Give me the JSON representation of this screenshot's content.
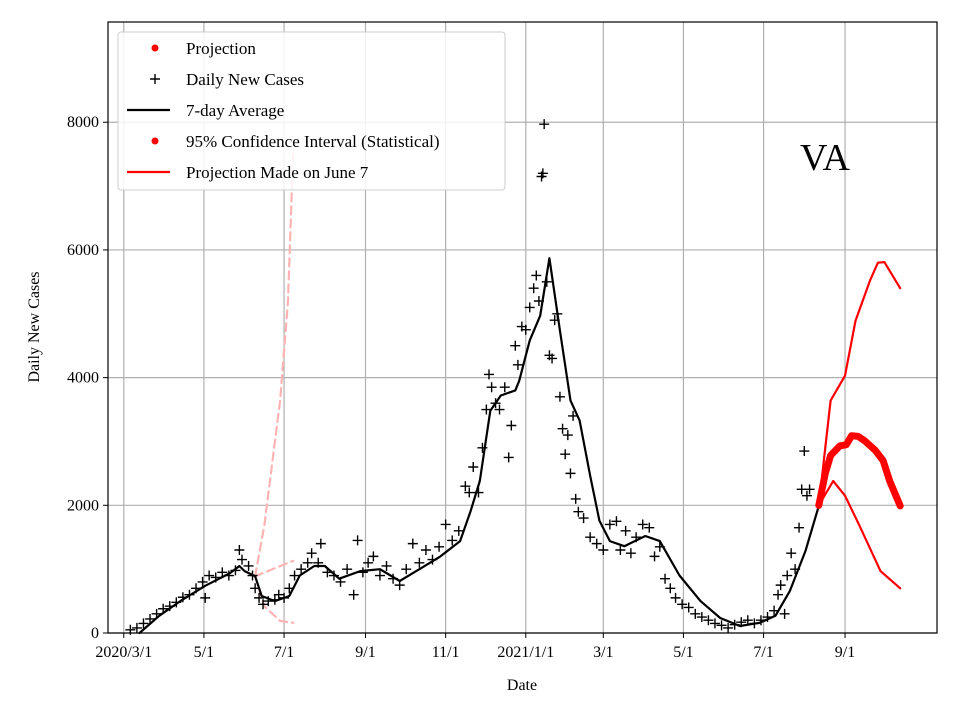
{
  "chart_data": {
    "type": "line",
    "title": "",
    "annotation": "VA",
    "xlabel": "Date",
    "ylabel": "Daily New Cases",
    "x_unit": "days since 2020-03-01",
    "xlim": [
      -12,
      619
    ],
    "ylim": [
      0,
      9570
    ],
    "grid": true,
    "legend_position": "top-left",
    "x_ticks": [
      {
        "day": 0,
        "label": "2020/3/1"
      },
      {
        "day": 61,
        "label": "5/1"
      },
      {
        "day": 122,
        "label": "7/1"
      },
      {
        "day": 184,
        "label": "9/1"
      },
      {
        "day": 245,
        "label": "11/1"
      },
      {
        "day": 306,
        "label": "2021/1/1"
      },
      {
        "day": 365,
        "label": "3/1"
      },
      {
        "day": 426,
        "label": "5/1"
      },
      {
        "day": 487,
        "label": "7/1"
      },
      {
        "day": 549,
        "label": "9/1"
      }
    ],
    "y_ticks": [
      {
        "value": 0,
        "label": "0"
      },
      {
        "value": 2000,
        "label": "2000"
      },
      {
        "value": 4000,
        "label": "4000"
      },
      {
        "value": 6000,
        "label": "6000"
      },
      {
        "value": 8000,
        "label": "8000"
      }
    ],
    "legend": [
      {
        "label": "Projection",
        "marker": "dot",
        "color": "#ff0000"
      },
      {
        "label": "Daily New Cases",
        "marker": "plus",
        "color": "#000000"
      },
      {
        "label": "7-day Average",
        "marker": "line",
        "color": "#000000"
      },
      {
        "label": "95% Confidence Interval (Statistical)",
        "marker": "dot",
        "color": "#ff0000"
      },
      {
        "label": "Projection Made on June 7",
        "marker": "line",
        "color": "#ff0000"
      }
    ],
    "series": [
      {
        "name": "Daily New Cases",
        "style": "plus",
        "color": "#000000",
        "points": [
          [
            5,
            50
          ],
          [
            10,
            80
          ],
          [
            15,
            150
          ],
          [
            20,
            220
          ],
          [
            25,
            300
          ],
          [
            30,
            380
          ],
          [
            35,
            420
          ],
          [
            40,
            480
          ],
          [
            45,
            560
          ],
          [
            50,
            600
          ],
          [
            55,
            700
          ],
          [
            60,
            800
          ],
          [
            62,
            550
          ],
          [
            65,
            900
          ],
          [
            70,
            870
          ],
          [
            75,
            950
          ],
          [
            80,
            900
          ],
          [
            85,
            980
          ],
          [
            88,
            1300
          ],
          [
            90,
            1150
          ],
          [
            95,
            1050
          ],
          [
            98,
            900
          ],
          [
            100,
            700
          ],
          [
            103,
            550
          ],
          [
            106,
            450
          ],
          [
            110,
            500
          ],
          [
            115,
            520
          ],
          [
            118,
            600
          ],
          [
            122,
            550
          ],
          [
            126,
            700
          ],
          [
            130,
            900
          ],
          [
            135,
            1000
          ],
          [
            140,
            1100
          ],
          [
            143,
            1250
          ],
          [
            148,
            1100
          ],
          [
            150,
            1400
          ],
          [
            155,
            950
          ],
          [
            160,
            900
          ],
          [
            165,
            800
          ],
          [
            170,
            1000
          ],
          [
            175,
            600
          ],
          [
            178,
            1450
          ],
          [
            182,
            950
          ],
          [
            186,
            1100
          ],
          [
            190,
            1200
          ],
          [
            195,
            900
          ],
          [
            200,
            1050
          ],
          [
            205,
            850
          ],
          [
            210,
            750
          ],
          [
            215,
            1000
          ],
          [
            220,
            1400
          ],
          [
            225,
            1100
          ],
          [
            230,
            1300
          ],
          [
            235,
            1150
          ],
          [
            240,
            1350
          ],
          [
            245,
            1700
          ],
          [
            250,
            1450
          ],
          [
            255,
            1600
          ],
          [
            260,
            2300
          ],
          [
            263,
            2200
          ],
          [
            266,
            2600
          ],
          [
            270,
            2200
          ],
          [
            273,
            2900
          ],
          [
            276,
            3500
          ],
          [
            278,
            4050
          ],
          [
            280,
            3850
          ],
          [
            283,
            3600
          ],
          [
            286,
            3500
          ],
          [
            290,
            3850
          ],
          [
            293,
            2750
          ],
          [
            295,
            3250
          ],
          [
            298,
            4500
          ],
          [
            300,
            4200
          ],
          [
            303,
            4800
          ],
          [
            306,
            4750
          ],
          [
            309,
            5100
          ],
          [
            312,
            5400
          ],
          [
            314,
            5600
          ],
          [
            316,
            5200
          ],
          [
            318,
            7150
          ],
          [
            319,
            7200
          ],
          [
            320,
            7970
          ],
          [
            322,
            5500
          ],
          [
            324,
            4350
          ],
          [
            326,
            4300
          ],
          [
            328,
            4900
          ],
          [
            330,
            5000
          ],
          [
            332,
            3700
          ],
          [
            334,
            3200
          ],
          [
            336,
            2800
          ],
          [
            338,
            3100
          ],
          [
            340,
            2500
          ],
          [
            342,
            3400
          ],
          [
            344,
            2100
          ],
          [
            346,
            1900
          ],
          [
            350,
            1800
          ],
          [
            355,
            1500
          ],
          [
            360,
            1400
          ],
          [
            365,
            1300
          ],
          [
            370,
            1700
          ],
          [
            375,
            1750
          ],
          [
            378,
            1300
          ],
          [
            382,
            1600
          ],
          [
            386,
            1250
          ],
          [
            390,
            1500
          ],
          [
            395,
            1700
          ],
          [
            400,
            1650
          ],
          [
            404,
            1200
          ],
          [
            408,
            1350
          ],
          [
            412,
            850
          ],
          [
            416,
            700
          ],
          [
            420,
            550
          ],
          [
            425,
            450
          ],
          [
            430,
            400
          ],
          [
            435,
            300
          ],
          [
            440,
            250
          ],
          [
            445,
            200
          ],
          [
            450,
            150
          ],
          [
            455,
            120
          ],
          [
            460,
            80
          ],
          [
            465,
            130
          ],
          [
            470,
            170
          ],
          [
            475,
            200
          ],
          [
            480,
            150
          ],
          [
            485,
            200
          ],
          [
            490,
            250
          ],
          [
            495,
            350
          ],
          [
            498,
            600
          ],
          [
            500,
            750
          ],
          [
            503,
            300
          ],
          [
            505,
            900
          ],
          [
            508,
            1250
          ],
          [
            511,
            1000
          ],
          [
            514,
            1650
          ],
          [
            516,
            2250
          ],
          [
            518,
            2850
          ],
          [
            520,
            2150
          ],
          [
            522,
            2250
          ]
        ]
      },
      {
        "name": "7-day Average",
        "style": "line",
        "color": "#000000",
        "points": [
          [
            12,
            0
          ],
          [
            27,
            270
          ],
          [
            43,
            500
          ],
          [
            62,
            740
          ],
          [
            81,
            940
          ],
          [
            88,
            1050
          ],
          [
            92,
            970
          ],
          [
            100,
            890
          ],
          [
            105,
            580
          ],
          [
            115,
            500
          ],
          [
            126,
            580
          ],
          [
            134,
            900
          ],
          [
            145,
            1050
          ],
          [
            153,
            1050
          ],
          [
            164,
            850
          ],
          [
            180,
            970
          ],
          [
            195,
            1000
          ],
          [
            210,
            815
          ],
          [
            225,
            1000
          ],
          [
            241,
            1200
          ],
          [
            256,
            1440
          ],
          [
            264,
            1910
          ],
          [
            271,
            2380
          ],
          [
            279,
            3480
          ],
          [
            287,
            3720
          ],
          [
            298,
            3800
          ],
          [
            301,
            3950
          ],
          [
            309,
            4580
          ],
          [
            317,
            4970
          ],
          [
            324,
            5870
          ],
          [
            332,
            4740
          ],
          [
            340,
            3640
          ],
          [
            347,
            3330
          ],
          [
            355,
            2460
          ],
          [
            362,
            1760
          ],
          [
            370,
            1440
          ],
          [
            381,
            1360
          ],
          [
            397,
            1520
          ],
          [
            408,
            1440
          ],
          [
            423,
            900
          ],
          [
            439,
            500
          ],
          [
            454,
            235
          ],
          [
            469,
            110
          ],
          [
            484,
            160
          ],
          [
            496,
            270
          ],
          [
            507,
            660
          ],
          [
            519,
            1290
          ],
          [
            529,
            1990
          ]
        ]
      },
      {
        "name": "Projection",
        "style": "thick",
        "color": "#ff0000",
        "points": [
          [
            529,
            2000
          ],
          [
            534,
            2500
          ],
          [
            538,
            2780
          ],
          [
            545,
            2930
          ],
          [
            550,
            2950
          ],
          [
            554,
            3090
          ],
          [
            559,
            3080
          ],
          [
            564,
            3010
          ],
          [
            572,
            2860
          ],
          [
            578,
            2700
          ],
          [
            583,
            2380
          ],
          [
            591,
            1990
          ]
        ]
      },
      {
        "name": "95% CI upper",
        "style": "line",
        "color": "#ff0000",
        "points": [
          [
            529,
            2000
          ],
          [
            538,
            3640
          ],
          [
            549,
            4030
          ],
          [
            557,
            4890
          ],
          [
            568,
            5520
          ],
          [
            574,
            5800
          ],
          [
            579,
            5810
          ],
          [
            591,
            5400
          ]
        ]
      },
      {
        "name": "95% CI lower",
        "style": "line",
        "color": "#ff0000",
        "points": [
          [
            529,
            2000
          ],
          [
            540,
            2380
          ],
          [
            549,
            2150
          ],
          [
            560,
            1680
          ],
          [
            576,
            970
          ],
          [
            591,
            700
          ]
        ]
      },
      {
        "name": "Projection Made on June 7 (upper)",
        "style": "dashed",
        "color": "#ffb3b3",
        "points": [
          [
            100,
            890
          ],
          [
            107,
            1680
          ],
          [
            119,
            3640
          ],
          [
            125,
            5200
          ],
          [
            129,
            7560
          ]
        ]
      },
      {
        "name": "Projection Made on June 7 (mid)",
        "style": "dashed",
        "color": "#ffb3b3",
        "points": [
          [
            100,
            890
          ],
          [
            129,
            1130
          ]
        ]
      },
      {
        "name": "Projection Made on June 7 (lower)",
        "style": "dashed",
        "color": "#ffb3b3",
        "points": [
          [
            100,
            890
          ],
          [
            107,
            420
          ],
          [
            119,
            190
          ],
          [
            129,
            160
          ]
        ]
      }
    ]
  }
}
